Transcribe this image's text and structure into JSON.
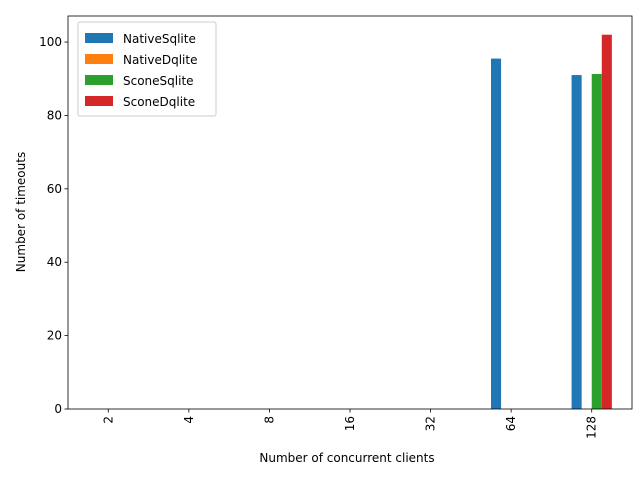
{
  "chart_data": {
    "type": "bar",
    "categories": [
      "2",
      "4",
      "8",
      "16",
      "32",
      "64",
      "128"
    ],
    "series": [
      {
        "name": "NativeSqlite",
        "color": "#1f77b4",
        "values": [
          0,
          0,
          0,
          0,
          0,
          95.5,
          91
        ]
      },
      {
        "name": "NativeDqlite",
        "color": "#ff7f0e",
        "values": [
          0,
          0,
          0,
          0,
          0,
          0,
          0
        ]
      },
      {
        "name": "SconeSqlite",
        "color": "#2ca02c",
        "values": [
          0,
          0,
          0,
          0,
          0,
          0,
          91.3
        ]
      },
      {
        "name": "SconeDqlite",
        "color": "#d62728",
        "values": [
          0,
          0,
          0,
          0,
          0,
          0,
          102
        ]
      }
    ],
    "xlabel": "Number of concurrent clients",
    "ylabel": "Number of timeouts",
    "ylim": [
      0,
      107.1
    ],
    "yticks": [
      0,
      20,
      40,
      60,
      80,
      100
    ],
    "x_tick_rotation": "vertical",
    "grid": false,
    "legend": "top-left"
  }
}
